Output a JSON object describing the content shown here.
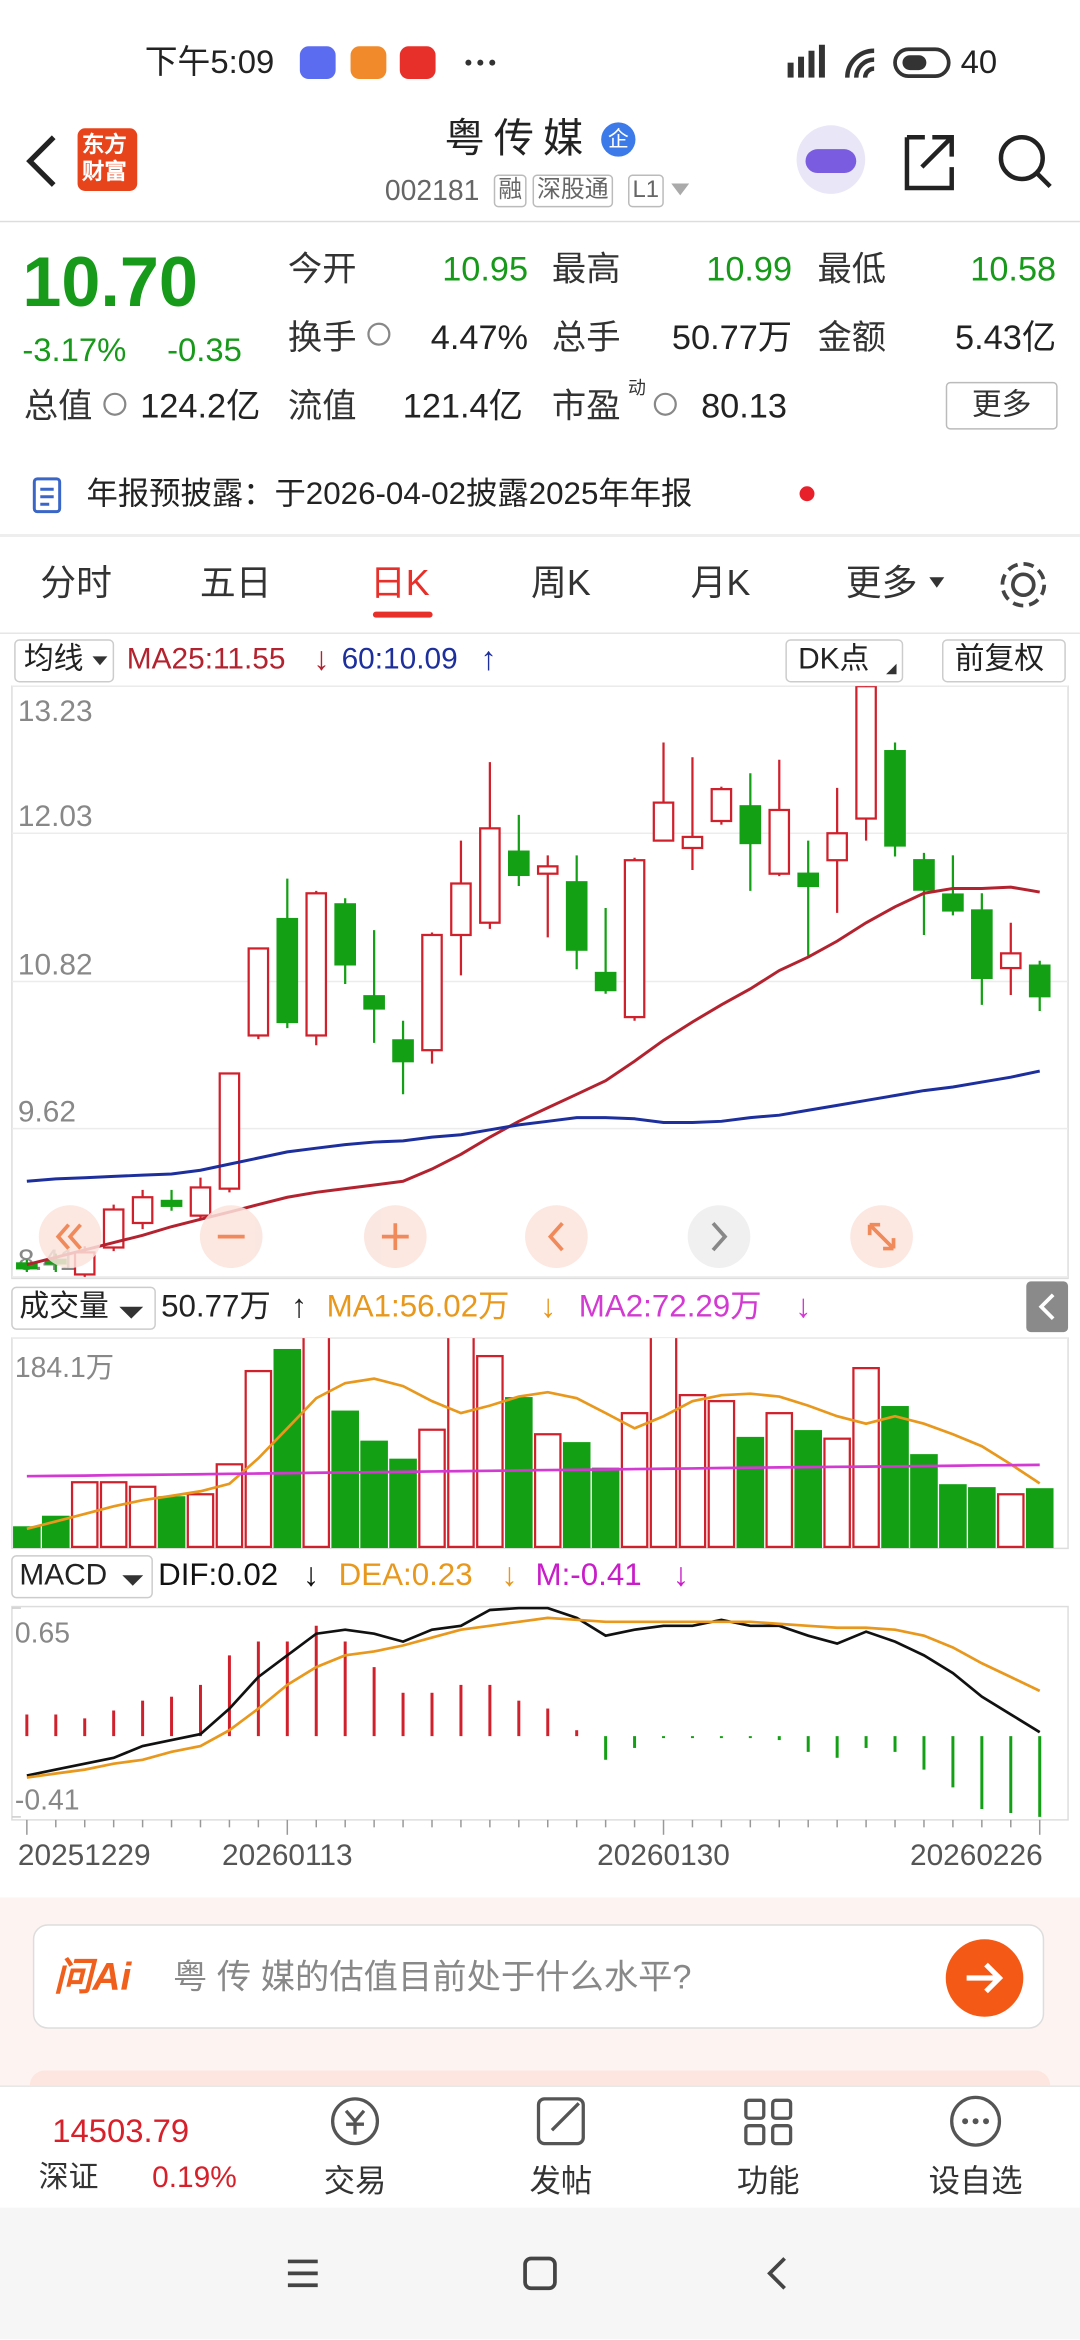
{
  "status_bar": {
    "time": "下午5:09",
    "battery": "40"
  },
  "header": {
    "logo": [
      "东方",
      "财富"
    ],
    "name": "粤传媒",
    "badge": "企",
    "code": "002181",
    "tags": [
      "融",
      "深股通",
      "L1"
    ]
  },
  "quote": {
    "price": "10.70",
    "change_pct": "-3.17%",
    "change": "-0.35",
    "fields": [
      {
        "label": "今开",
        "value": "10.95"
      },
      {
        "label": "最高",
        "value": "10.99"
      },
      {
        "label": "最低",
        "value": "10.58"
      },
      {
        "label": "换手",
        "value": "4.47%"
      },
      {
        "label": "总手",
        "value": "50.77万"
      },
      {
        "label": "金额",
        "value": "5.43亿"
      },
      {
        "label": "总值",
        "value": "124.2亿"
      },
      {
        "label": "流值",
        "value": "121.4亿"
      },
      {
        "label": "市盈",
        "label_sup": "动",
        "value": "80.13"
      }
    ],
    "more": "更多"
  },
  "notice": "年报预披露：于2026-04-02披露2025年年报",
  "tabs": [
    "分时",
    "五日",
    "日K",
    "周K",
    "月K",
    "更多"
  ],
  "active_tab": 2,
  "kline": {
    "type": "candlestick",
    "selector": "均线",
    "buttons": [
      "DK点",
      "前复权"
    ],
    "ylim": [
      8.41,
      13.23
    ],
    "yticks": [
      13.23,
      12.03,
      10.82,
      9.62,
      8.41
    ],
    "grid": true,
    "up_color": "#d0202c",
    "down_color": "#14a014",
    "categories": [
      "20251229",
      null,
      null,
      null,
      null,
      null,
      null,
      null,
      null,
      "20260113",
      null,
      null,
      null,
      null,
      null,
      null,
      null,
      null,
      null,
      null,
      null,
      null,
      "20260130",
      null,
      null,
      null,
      null,
      null,
      null,
      null,
      null,
      null,
      null,
      null,
      null,
      "20260226"
    ],
    "open": [
      8.52,
      8.55,
      8.43,
      8.65,
      8.85,
      9.03,
      8.91,
      9.13,
      10.38,
      11.33,
      10.38,
      11.45,
      10.7,
      10.34,
      10.26,
      11.2,
      11.3,
      11.88,
      11.7,
      11.63,
      10.89,
      10.53,
      11.97,
      11.91,
      12.13,
      12.25,
      11.7,
      11.7,
      11.81,
      12.15,
      12.7,
      11.81,
      11.53,
      11.4,
      10.93,
      10.95
    ],
    "high": [
      8.55,
      8.6,
      8.66,
      9.0,
      9.12,
      9.12,
      9.22,
      10.07,
      11.09,
      11.66,
      11.56,
      11.5,
      11.24,
      10.5,
      11.22,
      11.97,
      12.61,
      12.18,
      11.85,
      11.85,
      11.42,
      11.83,
      12.77,
      12.65,
      12.41,
      12.52,
      12.63,
      11.97,
      12.4,
      13.23,
      12.77,
      11.87,
      11.85,
      11.54,
      11.3,
      10.99
    ],
    "low": [
      8.45,
      8.45,
      8.41,
      8.62,
      8.8,
      8.95,
      8.88,
      9.1,
      10.35,
      10.44,
      10.3,
      10.8,
      10.32,
      9.9,
      10.15,
      10.87,
      11.25,
      11.6,
      11.18,
      10.92,
      10.72,
      10.5,
      11.97,
      11.73,
      12.1,
      11.56,
      11.68,
      11.03,
      11.38,
      11.97,
      11.84,
      11.2,
      11.36,
      10.63,
      10.71,
      10.58
    ],
    "close": [
      8.48,
      8.52,
      8.61,
      8.96,
      9.06,
      8.99,
      9.14,
      10.07,
      11.09,
      10.49,
      11.54,
      10.96,
      10.6,
      10.17,
      11.2,
      11.62,
      12.07,
      11.69,
      11.76,
      11.08,
      10.75,
      11.81,
      12.28,
      12.0,
      12.39,
      11.95,
      12.22,
      11.6,
      12.03,
      13.23,
      11.93,
      11.57,
      11.4,
      10.85,
      11.05,
      10.7
    ],
    "series": [
      {
        "name": "MA25:11.55",
        "trend": "↓",
        "color": "#b3232f",
        "values": [
          8.51,
          8.57,
          8.63,
          8.69,
          8.75,
          8.82,
          8.88,
          8.94,
          9.0,
          9.06,
          9.1,
          9.13,
          9.16,
          9.19,
          9.29,
          9.41,
          9.55,
          9.68,
          9.79,
          9.9,
          10.01,
          10.17,
          10.34,
          10.49,
          10.63,
          10.76,
          10.91,
          11.02,
          11.15,
          11.3,
          11.43,
          11.54,
          11.58,
          11.58,
          11.59,
          11.55
        ]
      },
      {
        "name": "60:10.09",
        "trend": "↑",
        "color": "#1c2f9c",
        "values": [
          9.19,
          9.21,
          9.22,
          9.23,
          9.24,
          9.25,
          9.28,
          9.33,
          9.38,
          9.43,
          9.46,
          9.49,
          9.51,
          9.52,
          9.55,
          9.57,
          9.61,
          9.65,
          9.68,
          9.71,
          9.71,
          9.7,
          9.67,
          9.67,
          9.68,
          9.71,
          9.73,
          9.77,
          9.81,
          9.85,
          9.89,
          9.93,
          9.96,
          10.0,
          10.04,
          10.09
        ]
      }
    ]
  },
  "volume": {
    "type": "bar",
    "selector": "成交量",
    "current": "50.77万",
    "current_trend": "↑",
    "ylim": [
      0,
      184.1
    ],
    "yticks": [
      {
        "value": 184.1,
        "label": "184.1万"
      }
    ],
    "values": [
      17.2,
      26.5,
      57,
      57,
      53,
      43.7,
      46.4,
      72.8,
      155,
      173.5,
      190,
      119.2,
      92.7,
      76.8,
      103.3,
      190,
      168.2,
      131.1,
      99.3,
      91.4,
      68.9,
      117.9,
      190,
      133.8,
      128.5,
      96.0,
      117.9,
      102.0,
      95.4,
      157.6,
      123.2,
      80.8,
      54.3,
      51.7,
      46.4,
      50.77
    ],
    "series": [
      {
        "name": "MA1:56.02万",
        "trend": "↓",
        "color": "#e8981c",
        "values": [
          15.9,
          22.5,
          29.1,
          35.8,
          41.1,
          45.0,
          49.0,
          55.6,
          78.1,
          104.6,
          131.1,
          144.4,
          148.3,
          141.7,
          128.5,
          117.9,
          124.5,
          132.5,
          136.4,
          131.1,
          117.9,
          104.6,
          115.2,
          128.5,
          133.8,
          135.1,
          132.5,
          124.5,
          115.2,
          108.6,
          115.2,
          108.6,
          99.3,
          88.7,
          72.8,
          56.02
        ]
      },
      {
        "name": "MA2:72.29万",
        "trend": "↓",
        "color": "#d23ad2",
        "values": [
          62.3,
          62.6,
          62.9,
          63.2,
          63.5,
          63.8,
          64.1,
          64.4,
          64.7,
          65.0,
          65.3,
          65.6,
          65.9,
          66.2,
          66.5,
          66.8,
          67.1,
          67.4,
          67.7,
          68.0,
          68.3,
          68.6,
          68.9,
          69.2,
          69.5,
          69.8,
          70.1,
          70.4,
          70.6,
          70.8,
          71.0,
          71.3,
          71.6,
          71.9,
          72.1,
          72.29
        ]
      }
    ]
  },
  "macd": {
    "type": "bar",
    "selector": "MACD",
    "ylim": [
      -0.41,
      0.65
    ],
    "yticks": [
      0.65,
      -0.41
    ],
    "up_color": "#d0202c",
    "down_color": "#14a014",
    "histogram": {
      "name": "M:-0.41",
      "trend": "↓",
      "color": "#c81ec8",
      "values": [
        0.11,
        0.11,
        0.09,
        0.13,
        0.18,
        0.2,
        0.26,
        0.41,
        0.48,
        0.48,
        0.56,
        0.48,
        0.35,
        0.22,
        0.22,
        0.26,
        0.26,
        0.18,
        0.14,
        0.03,
        -0.12,
        -0.06,
        -0.01,
        -0.01,
        -0.01,
        -0.01,
        -0.02,
        -0.08,
        -0.11,
        -0.06,
        -0.08,
        -0.17,
        -0.26,
        -0.37,
        -0.39,
        -0.41
      ]
    },
    "series": [
      {
        "name": "DIF:0.02",
        "trend": "↓",
        "color": "#111111",
        "values": [
          -0.2,
          -0.17,
          -0.14,
          -0.11,
          -0.05,
          -0.02,
          0.01,
          0.14,
          0.3,
          0.41,
          0.52,
          0.54,
          0.52,
          0.48,
          0.54,
          0.56,
          0.64,
          0.65,
          0.65,
          0.6,
          0.51,
          0.54,
          0.56,
          0.56,
          0.59,
          0.56,
          0.56,
          0.51,
          0.47,
          0.53,
          0.48,
          0.41,
          0.32,
          0.2,
          0.11,
          0.02
        ]
      },
      {
        "name": "DEA:0.23",
        "trend": "↓",
        "color": "#e8981c",
        "values": [
          -0.21,
          -0.19,
          -0.17,
          -0.14,
          -0.12,
          -0.08,
          -0.05,
          0.03,
          0.14,
          0.26,
          0.35,
          0.41,
          0.43,
          0.46,
          0.5,
          0.54,
          0.56,
          0.58,
          0.6,
          0.59,
          0.58,
          0.58,
          0.58,
          0.58,
          0.58,
          0.58,
          0.57,
          0.56,
          0.55,
          0.55,
          0.54,
          0.51,
          0.45,
          0.37,
          0.3,
          0.23
        ]
      }
    ]
  },
  "ai": {
    "logo": "问Ai",
    "placeholder": "粤 传 媒的估值目前处于什么水平?"
  },
  "bottom_nav": {
    "index_value": "14503.79",
    "index_name": "深证",
    "index_change": "0.19%",
    "items": [
      "交易",
      "发帖",
      "功能",
      "设自选"
    ]
  }
}
